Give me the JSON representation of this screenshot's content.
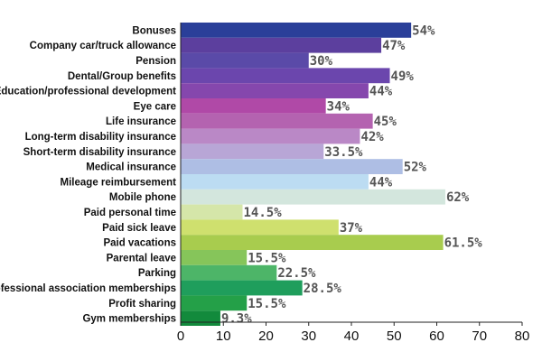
{
  "chart_data": {
    "type": "bar",
    "orientation": "horizontal",
    "title": "",
    "xlabel": "",
    "ylabel": "",
    "xlim": [
      0,
      80
    ],
    "grid": false,
    "x_ticks": [
      0,
      10,
      20,
      30,
      40,
      50,
      60,
      70,
      80
    ],
    "categories": [
      "Bonuses",
      "Company car/truck allowance",
      "Pension",
      "Dental/Group benefits",
      "Education/professional development",
      "Eye care",
      "Life insurance",
      "Long-term disability insurance",
      "Short-term disability insurance",
      "Medical insurance",
      "Mileage reimbursement",
      "Mobile phone",
      "Paid personal time",
      "Paid sick leave",
      "Paid vacations",
      "Parental leave",
      "Parking",
      "Professional association memberships",
      "Profit sharing",
      "Gym memberships"
    ],
    "values": [
      54,
      47,
      30,
      49,
      44,
      34,
      45,
      42,
      33.5,
      52,
      44,
      62,
      14.5,
      37,
      61.5,
      15.5,
      22.5,
      28.5,
      15.5,
      9.3
    ],
    "value_labels": [
      "54%",
      "47%",
      "30%",
      "49%",
      "44%",
      "34%",
      "45%",
      "42%",
      "33.5%",
      "52%",
      "44%",
      "62%",
      "14.5%",
      "37%",
      "61.5%",
      "15.5%",
      "22.5%",
      "28.5%",
      "15.5%",
      "9.3%"
    ],
    "bar_colors": [
      "#2a3f99",
      "#5c3f9e",
      "#5a4aa8",
      "#6b46ad",
      "#8547ad",
      "#b049a7",
      "#b463b0",
      "#ba88c6",
      "#b8a6d6",
      "#aebee4",
      "#bcdcf2",
      "#d3e6dd",
      "#d5e6a9",
      "#cfe06e",
      "#a8cc4e",
      "#86c55a",
      "#4db568",
      "#1f9e5c",
      "#24a048",
      "#128a3c"
    ],
    "axis_color": "#222222"
  }
}
